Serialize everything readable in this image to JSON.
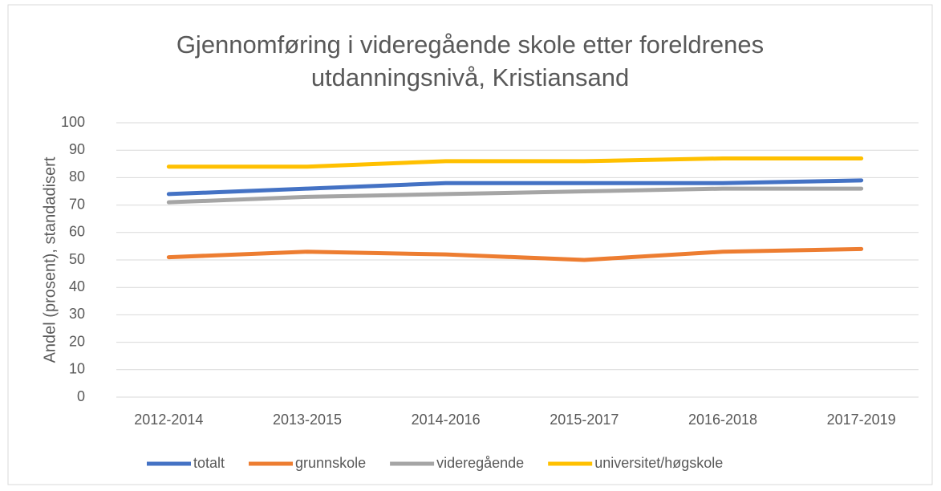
{
  "chart_data": {
    "type": "line",
    "title": [
      "Gjennomføring i videregående skole etter foreldrenes",
      "utdanningsnivå, Kristiansand"
    ],
    "ylabel": "Andel (prosent), standadisert",
    "categories": [
      "2012-2014",
      "2013-2015",
      "2014-2016",
      "2015-2017",
      "2016-2018",
      "2017-2019"
    ],
    "series": [
      {
        "name": "totalt",
        "color": "#4472c4",
        "values": [
          74,
          76,
          78,
          78,
          78,
          79
        ]
      },
      {
        "name": "grunnskole",
        "color": "#ed7d31",
        "values": [
          51,
          53,
          52,
          50,
          53,
          54
        ]
      },
      {
        "name": "videregående",
        "color": "#a5a5a5",
        "values": [
          71,
          73,
          74,
          75,
          76,
          76
        ]
      },
      {
        "name": "universitet/høgskole",
        "color": "#ffc000",
        "values": [
          84,
          84,
          86,
          86,
          87,
          87
        ]
      }
    ],
    "ylim": [
      0,
      100
    ],
    "yticks": [
      0,
      10,
      20,
      30,
      40,
      50,
      60,
      70,
      80,
      90,
      100
    ],
    "grid": true,
    "legend": "bottom"
  }
}
